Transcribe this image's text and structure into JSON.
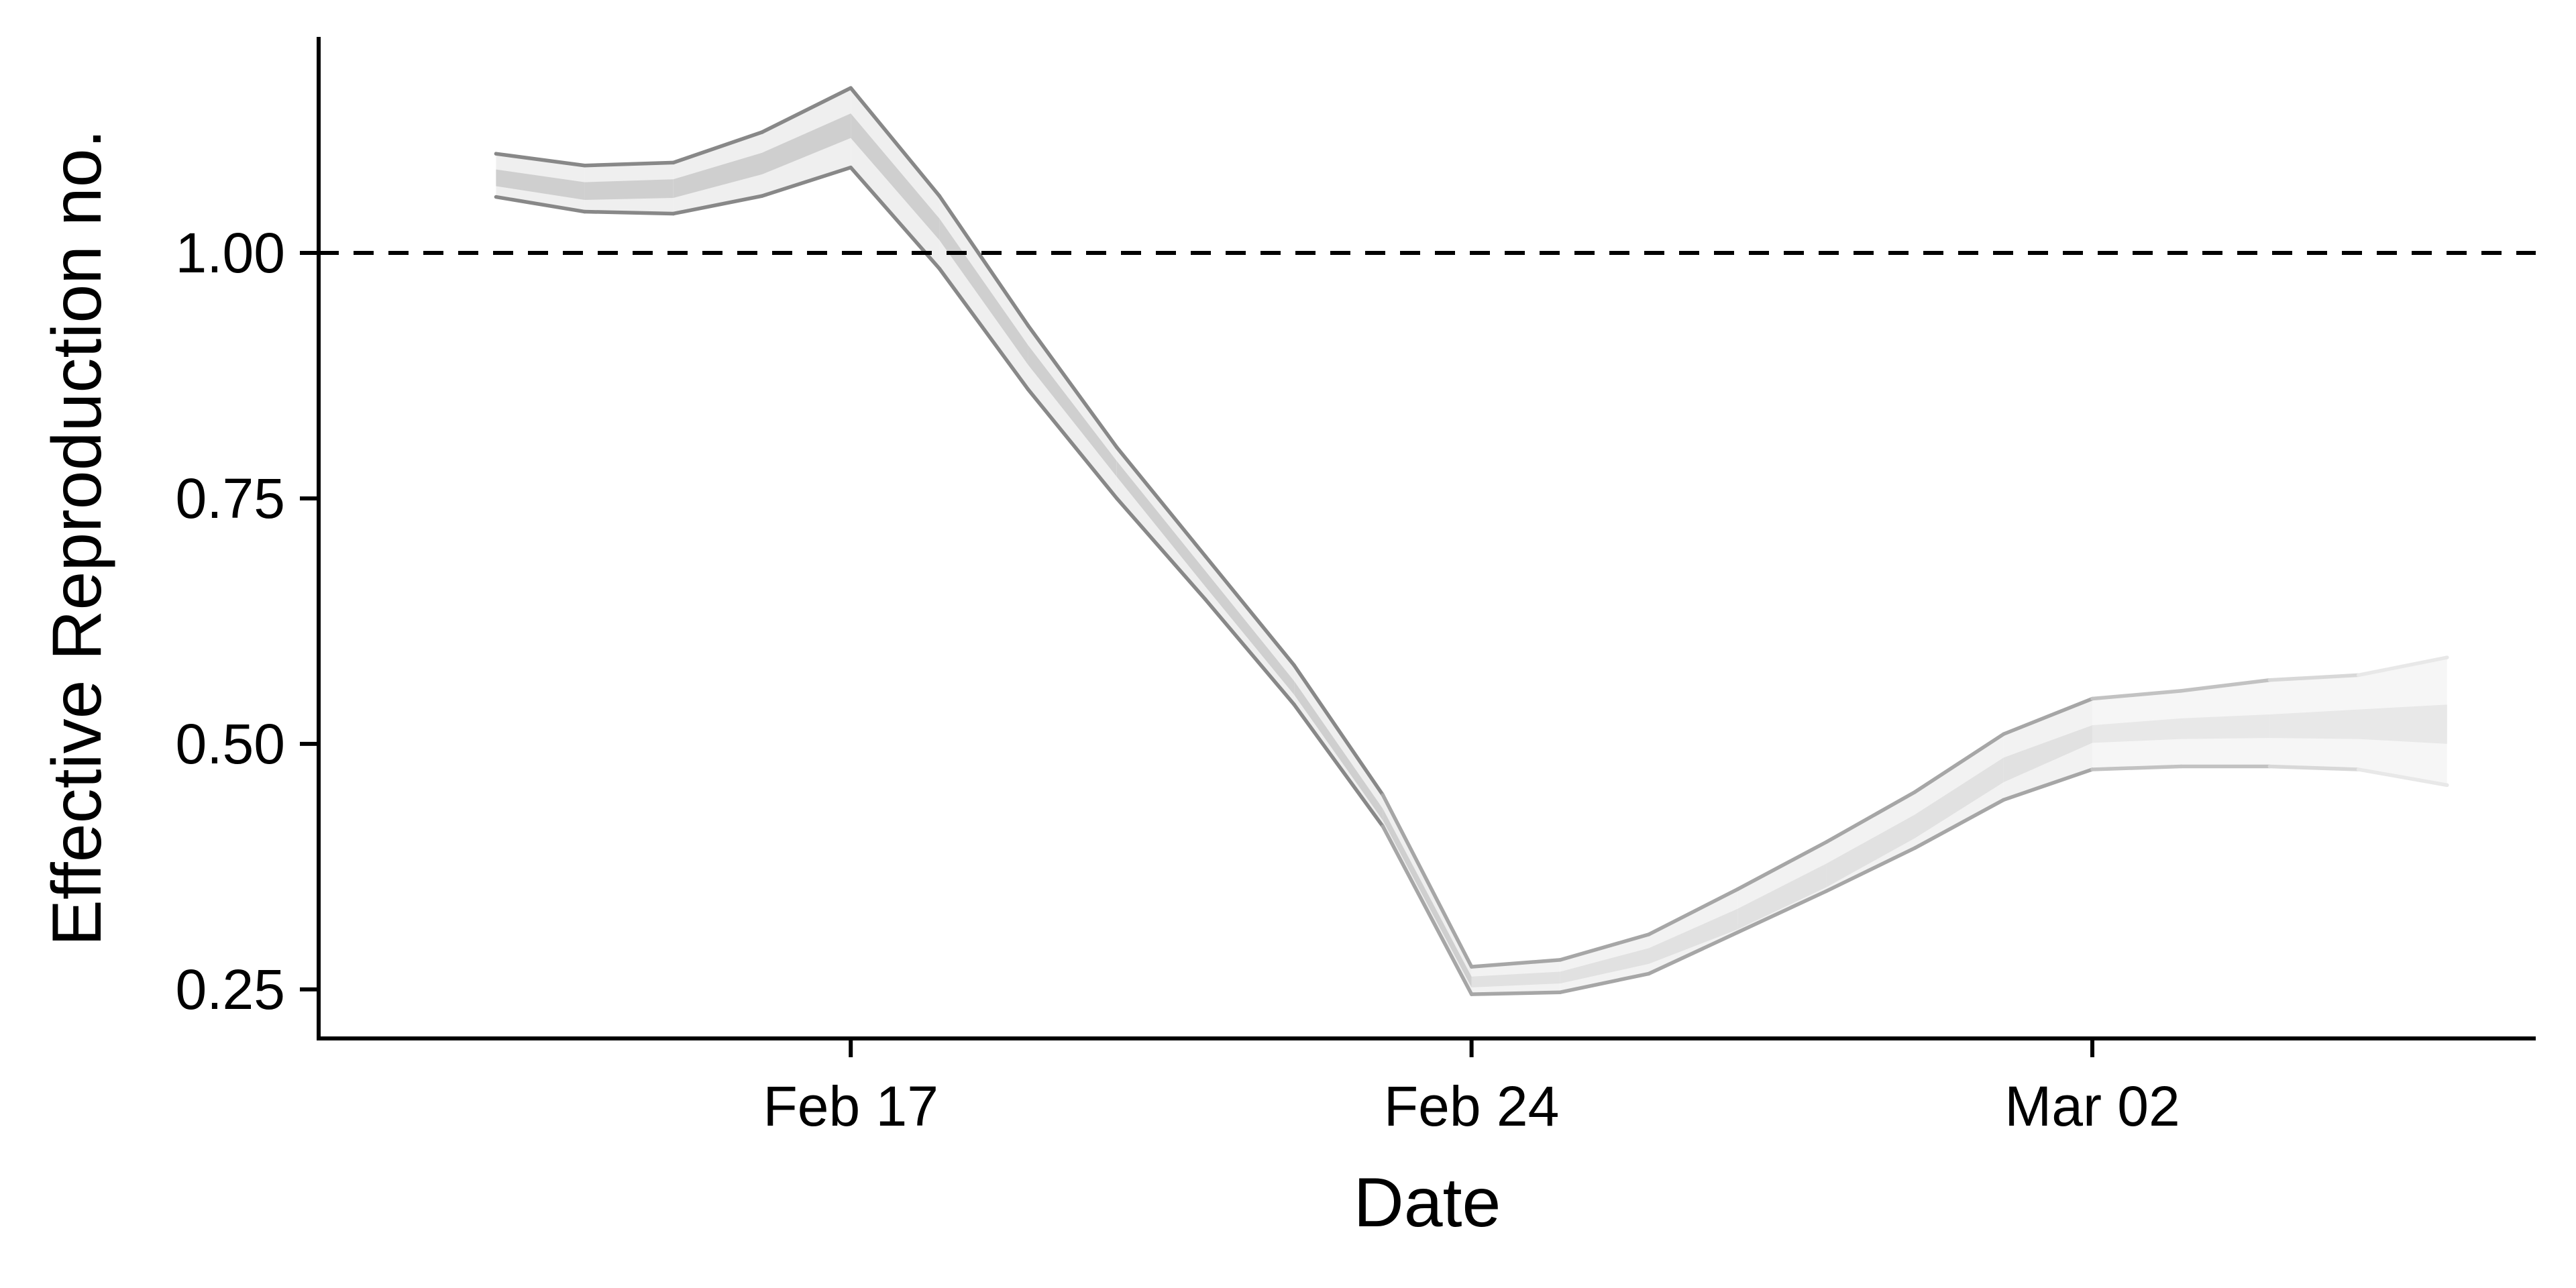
{
  "chart_data": {
    "type": "line",
    "xlabel": "Date",
    "ylabel": "Effective Reproduction no.",
    "x_ticks": [
      "Feb 17",
      "Feb 24",
      "Mar 02"
    ],
    "y_ticks": [
      "0.25",
      "0.50",
      "0.75",
      "1.00"
    ],
    "y_tick_values": [
      0.25,
      0.5,
      0.75,
      1.0
    ],
    "ylim": [
      0.2,
      1.22
    ],
    "xlim_days": [
      "2020-02-11",
      "2020-03-07"
    ],
    "reference_line": {
      "y": 1.0,
      "style": "dashed"
    },
    "grid": false,
    "legend": "none",
    "dates": [
      "2020-02-13",
      "2020-02-14",
      "2020-02-15",
      "2020-02-16",
      "2020-02-17",
      "2020-02-18",
      "2020-02-19",
      "2020-02-20",
      "2020-02-21",
      "2020-02-22",
      "2020-02-23",
      "2020-02-24",
      "2020-02-25",
      "2020-02-26",
      "2020-02-27",
      "2020-02-28",
      "2020-02-29",
      "2020-03-01",
      "2020-03-02",
      "2020-03-03",
      "2020-03-04",
      "2020-03-05",
      "2020-03-06"
    ],
    "series": [
      {
        "role": "outer_upper",
        "values": [
          1.101,
          1.089,
          1.092,
          1.123,
          1.168,
          1.058,
          0.926,
          0.802,
          0.691,
          0.58,
          0.448,
          0.273,
          0.28,
          0.306,
          0.352,
          0.4,
          0.451,
          0.51,
          0.546,
          0.554,
          0.565,
          0.57,
          0.588
        ]
      },
      {
        "role": "inner_upper",
        "values": [
          1.085,
          1.072,
          1.075,
          1.102,
          1.142,
          1.035,
          0.906,
          0.788,
          0.676,
          0.564,
          0.434,
          0.263,
          0.268,
          0.292,
          0.332,
          0.378,
          0.428,
          0.486,
          0.519,
          0.526,
          0.53,
          0.535,
          0.54
        ]
      },
      {
        "role": "inner_lower",
        "values": [
          1.068,
          1.054,
          1.056,
          1.08,
          1.117,
          1.013,
          0.886,
          0.772,
          0.66,
          0.55,
          0.422,
          0.252,
          0.256,
          0.276,
          0.311,
          0.354,
          0.404,
          0.461,
          0.501,
          0.505,
          0.506,
          0.505,
          0.5
        ]
      },
      {
        "role": "outer_lower",
        "values": [
          1.057,
          1.042,
          1.04,
          1.058,
          1.087,
          0.984,
          0.861,
          0.75,
          0.647,
          0.54,
          0.416,
          0.245,
          0.247,
          0.266,
          0.308,
          0.35,
          0.394,
          0.443,
          0.474,
          0.477,
          0.477,
          0.474,
          0.458
        ]
      }
    ]
  }
}
